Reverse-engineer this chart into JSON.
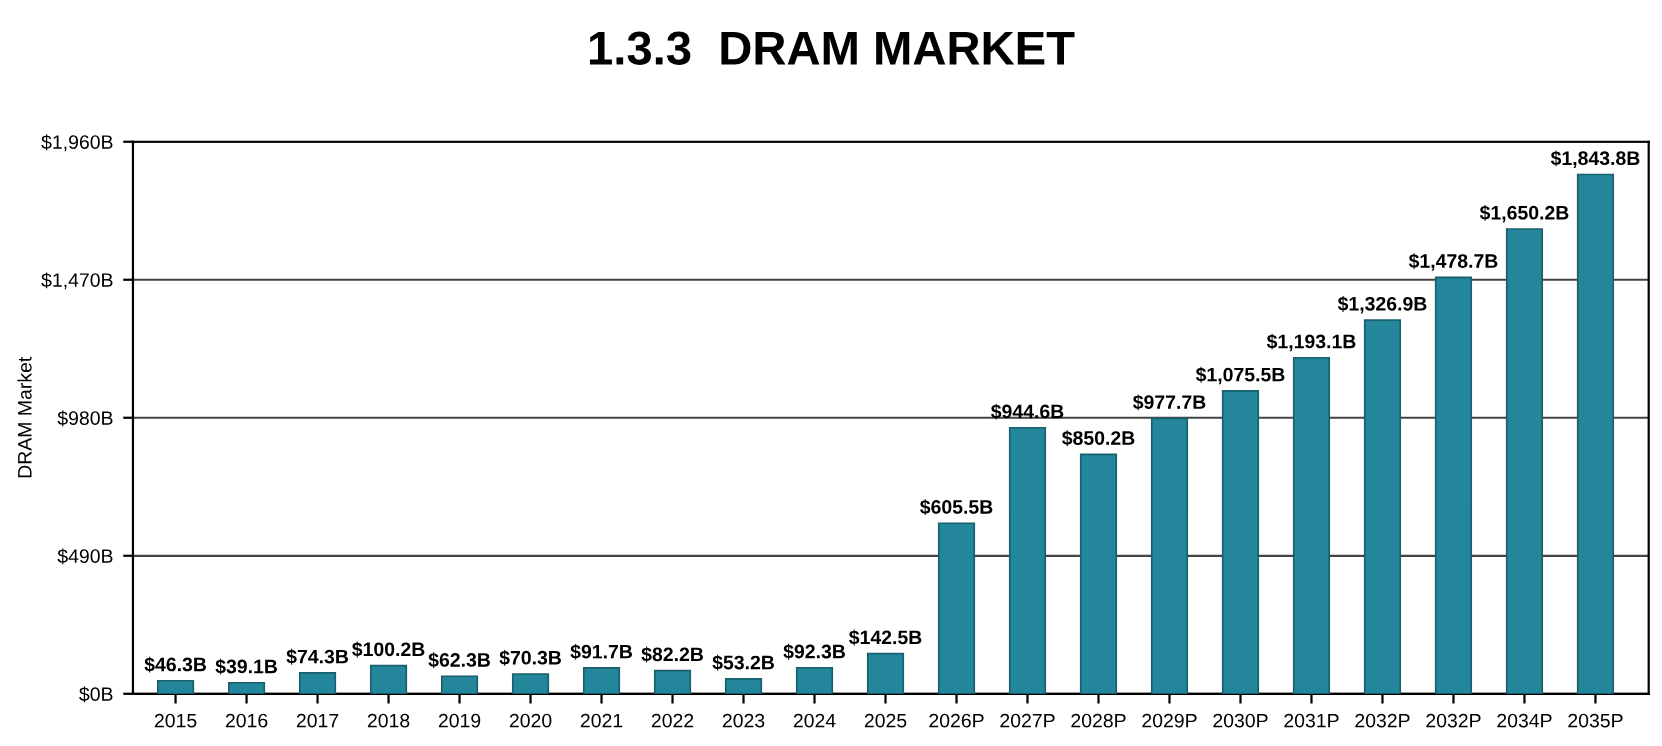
{
  "chart_data": {
    "type": "bar",
    "title": "1.3.3  DRAM MARKET",
    "ylabel": "DRAM Market",
    "categories": [
      "2015",
      "2016",
      "2017",
      "2018",
      "2019",
      "2020",
      "2021",
      "2022",
      "2023",
      "2024",
      "2025",
      "2026P",
      "2027P",
      "2028P",
      "2029P",
      "2030P",
      "2031P",
      "2032P",
      "2032P",
      "2034P",
      "2035P"
    ],
    "values": [
      46.3,
      39.1,
      74.3,
      100.2,
      62.3,
      70.3,
      91.7,
      82.2,
      53.2,
      92.3,
      142.5,
      605.5,
      944.6,
      850.2,
      977.7,
      1075.5,
      1193.1,
      1326.9,
      1478.7,
      1650.2,
      1843.8
    ],
    "value_labels": [
      "$46.3B",
      "$39.1B",
      "$74.3B",
      "$100.2B",
      "$62.3B",
      "$70.3B",
      "$91.7B",
      "$82.2B",
      "$53.2B",
      "$92.3B",
      "$142.5B",
      "$605.5B",
      "$944.6B",
      "$850.2B",
      "$977.7B",
      "$1,075.5B",
      "$1,193.1B",
      "$1,326.9B",
      "$1,478.7B",
      "$1,650.2B",
      "$1,843.8B"
    ],
    "color": "#23869b",
    "ylim": [
      0,
      1960
    ],
    "yticks": [
      {
        "value": 0,
        "label": "$0B"
      },
      {
        "value": 490,
        "label": "$490B"
      },
      {
        "value": 980,
        "label": "$980B"
      },
      {
        "value": 1470,
        "label": "$1,470B"
      },
      {
        "value": 1960,
        "label": "$1,960B"
      }
    ],
    "grid": "y",
    "legend": false
  }
}
